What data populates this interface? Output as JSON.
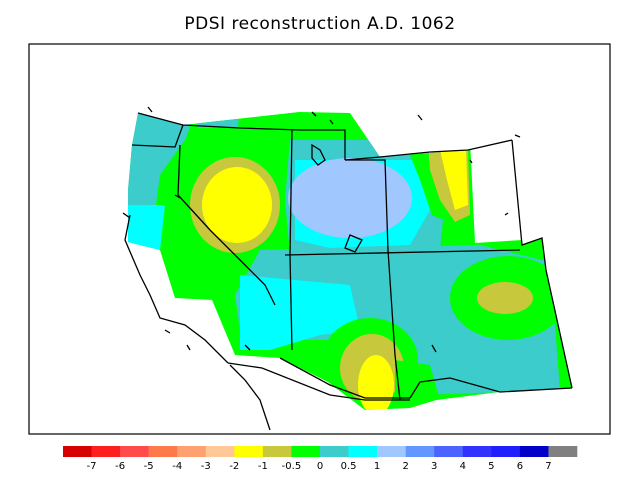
{
  "title": "PDSI reconstruction A.D. 1062",
  "colorbar": {
    "colors": [
      "#d70000",
      "#ff1e1e",
      "#ff4b4b",
      "#ff7a4a",
      "#ffa070",
      "#ffc896",
      "#ffff00",
      "#c8c83c",
      "#00ff00",
      "#3ccccc",
      "#00ffff",
      "#a0c8ff",
      "#6496ff",
      "#4b64ff",
      "#3232ff",
      "#1e1eff",
      "#0000c8",
      "#808080"
    ],
    "labels": [
      "-7",
      "-6",
      "-5",
      "-4",
      "-3",
      "-2",
      "-1",
      "-0.5",
      "0",
      "0.5",
      "1",
      "2",
      "3",
      "4",
      "5",
      "6",
      "7"
    ]
  }
}
